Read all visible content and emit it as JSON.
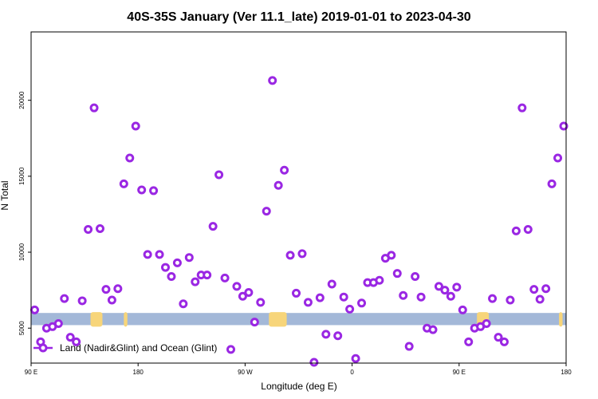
{
  "chart_data": {
    "type": "scatter",
    "title": "40S-35S January (Ver 11.1_late)   2019-01-01 to 2023-04-30",
    "xlabel": "Longitude (deg E)",
    "ylabel": "N Total",
    "x_ticks": [
      {
        "value": 90,
        "label": "90 E"
      },
      {
        "value": 180,
        "label": "180"
      },
      {
        "value": 270,
        "label": "90 W"
      },
      {
        "value": 360,
        "label": "0"
      },
      {
        "value": 450,
        "label": "90 E"
      },
      {
        "value": 540,
        "label": "180"
      }
    ],
    "y_ticks": [
      {
        "value": 5000,
        "label": "5000"
      },
      {
        "value": 10000,
        "label": "10000"
      },
      {
        "value": 15000,
        "label": "15000"
      },
      {
        "value": 20000,
        "label": "20000"
      }
    ],
    "xlim": [
      90,
      540
    ],
    "ylim": [
      2700,
      24500
    ],
    "grid": false,
    "legend_position": "bottom-left",
    "band": {
      "ymin": 5200,
      "ymax": 6000,
      "color": "#a3b8d8"
    },
    "land_color": "#f7d57a",
    "land_segments": [
      [
        140,
        150
      ],
      [
        168,
        171
      ],
      [
        290,
        305
      ],
      [
        465,
        475
      ],
      [
        534,
        537
      ]
    ],
    "series": [
      {
        "name": "Land (Nadir&Glint) and Ocean (Glint)",
        "color": "#9a27e3",
        "points": [
          [
            93,
            6200
          ],
          [
            98,
            4100
          ],
          [
            103,
            5000
          ],
          [
            108,
            5100
          ],
          [
            113,
            5300
          ],
          [
            118,
            6950
          ],
          [
            123,
            4400
          ],
          [
            128,
            4100
          ],
          [
            133,
            6800
          ],
          [
            138,
            11500
          ],
          [
            143,
            19500
          ],
          [
            148,
            11550
          ],
          [
            153,
            7550
          ],
          [
            158,
            6850
          ],
          [
            163,
            7600
          ],
          [
            168,
            14500
          ],
          [
            173,
            16200
          ],
          [
            178,
            18300
          ],
          [
            183,
            14100
          ],
          [
            188,
            9850
          ],
          [
            193,
            14050
          ],
          [
            198,
            9850
          ],
          [
            203,
            9000
          ],
          [
            208,
            8400
          ],
          [
            213,
            9300
          ],
          [
            218,
            6600
          ],
          [
            223,
            9650
          ],
          [
            228,
            8050
          ],
          [
            233,
            8500
          ],
          [
            238,
            8500
          ],
          [
            243,
            11700
          ],
          [
            248,
            15100
          ],
          [
            253,
            8300
          ],
          [
            258,
            3600
          ],
          [
            263,
            7750
          ],
          [
            268,
            7100
          ],
          [
            273,
            7350
          ],
          [
            278,
            5400
          ],
          [
            283,
            6700
          ],
          [
            288,
            12700
          ],
          [
            293,
            21300
          ],
          [
            298,
            14400
          ],
          [
            303,
            15400
          ],
          [
            308,
            9800
          ],
          [
            313,
            7300
          ],
          [
            318,
            9900
          ],
          [
            323,
            6700
          ],
          [
            328,
            2750
          ],
          [
            333,
            7000
          ],
          [
            338,
            4600
          ],
          [
            343,
            7900
          ],
          [
            348,
            4500
          ],
          [
            353,
            7050
          ],
          [
            358,
            6250
          ],
          [
            363,
            3000
          ],
          [
            368,
            6650
          ],
          [
            373,
            8000
          ],
          [
            378,
            8000
          ],
          [
            383,
            8150
          ],
          [
            388,
            9600
          ],
          [
            393,
            9800
          ],
          [
            398,
            8600
          ],
          [
            403,
            7150
          ],
          [
            408,
            3800
          ],
          [
            413,
            8400
          ],
          [
            418,
            7050
          ],
          [
            423,
            5000
          ],
          [
            428,
            4900
          ],
          [
            433,
            7750
          ],
          [
            438,
            7500
          ],
          [
            443,
            7100
          ],
          [
            448,
            7700
          ],
          [
            453,
            6200
          ],
          [
            458,
            4100
          ],
          [
            463,
            5000
          ],
          [
            468,
            5100
          ],
          [
            473,
            5300
          ],
          [
            478,
            6950
          ],
          [
            483,
            4400
          ],
          [
            488,
            4100
          ],
          [
            493,
            6850
          ],
          [
            498,
            11400
          ],
          [
            503,
            19500
          ],
          [
            508,
            11500
          ],
          [
            513,
            7550
          ],
          [
            518,
            6900
          ],
          [
            523,
            7600
          ],
          [
            528,
            14500
          ],
          [
            533,
            16200
          ],
          [
            538,
            18300
          ]
        ]
      }
    ]
  }
}
